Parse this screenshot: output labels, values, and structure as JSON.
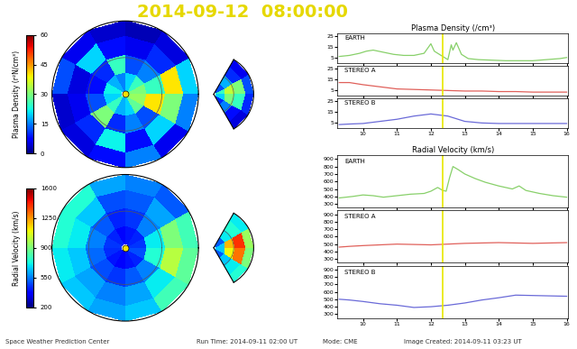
{
  "title": "2014-09-12  08:00:00",
  "footer": [
    "Space Weather Prediction Center",
    "Run Time: 2014-09-11 02:00 UT",
    "Mode: CME",
    "Image Created: 2014-09-11 03:23 UT"
  ],
  "chart_data": [
    {
      "type": "polar_heatmap",
      "colorbar_label": "Plasma Density (r²N/cm³)",
      "colorbar_range": [
        0,
        60
      ],
      "colorbar_ticks": [
        0,
        15,
        30,
        45,
        60
      ],
      "tick_labels": false,
      "grid": false,
      "theta_edges": [
        0,
        30,
        60,
        90,
        120,
        150,
        180,
        210,
        240,
        270,
        300,
        330,
        360
      ],
      "r_edges": [
        0.1,
        0.6,
        1.1,
        1.6,
        2.0
      ],
      "cells": [
        [
          30,
          25,
          40,
          20
        ],
        [
          25,
          15,
          10,
          5
        ],
        [
          20,
          12,
          6,
          3
        ],
        [
          15,
          25,
          8,
          4
        ],
        [
          18,
          10,
          20,
          6
        ],
        [
          22,
          8,
          5,
          12
        ],
        [
          20,
          12,
          6,
          4
        ],
        [
          25,
          30,
          10,
          5
        ],
        [
          18,
          10,
          22,
          8
        ],
        [
          20,
          15,
          8,
          15
        ],
        [
          28,
          12,
          20,
          6
        ],
        [
          32,
          40,
          30,
          15
        ]
      ],
      "wedge": {
        "theta_edges": [
          -60,
          -30,
          0,
          30,
          60
        ],
        "r_edges": [
          0.1,
          0.6,
          1.1,
          1.6,
          2.0
        ],
        "cells": [
          [
            10,
            15,
            8,
            5
          ],
          [
            20,
            30,
            25,
            10
          ],
          [
            25,
            35,
            30,
            12
          ],
          [
            12,
            18,
            10,
            6
          ]
        ]
      }
    },
    {
      "type": "polar_heatmap",
      "colorbar_label": "Radial Velocity (km/s)",
      "colorbar_range": [
        200,
        1600
      ],
      "colorbar_ticks": [
        200,
        550,
        900,
        1250,
        1600
      ],
      "tick_labels": false,
      "grid": false,
      "theta_edges": [
        0,
        30,
        60,
        90,
        120,
        150,
        180,
        210,
        240,
        270,
        300,
        330,
        360
      ],
      "r_edges": [
        0.1,
        0.6,
        1.1,
        1.6,
        2.0
      ],
      "cells": [
        [
          450,
          700,
          900,
          800
        ],
        [
          420,
          550,
          600,
          500
        ],
        [
          400,
          450,
          500,
          550
        ],
        [
          380,
          420,
          480,
          600
        ],
        [
          420,
          500,
          650,
          750
        ],
        [
          450,
          550,
          700,
          750
        ],
        [
          430,
          520,
          650,
          700
        ],
        [
          400,
          480,
          600,
          650
        ],
        [
          380,
          450,
          550,
          600
        ],
        [
          400,
          500,
          600,
          650
        ],
        [
          420,
          550,
          700,
          800
        ],
        [
          480,
          750,
          1000,
          850
        ]
      ],
      "wedge": {
        "theta_edges": [
          -60,
          -30,
          0,
          30,
          60
        ],
        "r_edges": [
          0.1,
          0.6,
          1.1,
          1.6,
          2.0
        ],
        "cells": [
          [
            500,
            650,
            700,
            750
          ],
          [
            650,
            1100,
            1300,
            900
          ],
          [
            650,
            1200,
            1400,
            950
          ],
          [
            500,
            700,
            750,
            700
          ]
        ]
      }
    },
    {
      "type": "line",
      "title": "Plasma Density (/cm³)",
      "tick_labels": "y",
      "vertical_line": 12.35,
      "xlim": [
        9.25,
        16.05
      ],
      "xticks": [
        10,
        11,
        12,
        13,
        14,
        15,
        16
      ],
      "ylim": [
        0,
        28
      ],
      "yticks": [
        5,
        15,
        25
      ],
      "series": [
        {
          "name": "EARTH",
          "color": "#88d06a",
          "x": [
            9.3,
            9.6,
            9.9,
            10.1,
            10.3,
            10.6,
            10.9,
            11.2,
            11.5,
            11.8,
            12.0,
            12.1,
            12.25,
            12.4,
            12.5,
            12.6,
            12.65,
            12.75,
            12.9,
            13.1,
            13.4,
            13.8,
            14.2,
            14.6,
            15.0,
            15.4,
            15.8,
            16.0
          ],
          "values": [
            6,
            7,
            9,
            11,
            12,
            10,
            8,
            7,
            7,
            9,
            18,
            11,
            8,
            5,
            3,
            17,
            12,
            19,
            8,
            4,
            3,
            2.5,
            2,
            2,
            2,
            3,
            4,
            5
          ]
        }
      ]
    },
    {
      "type": "line",
      "tick_labels": "y",
      "vertical_line": 12.35,
      "xlim": [
        9.25,
        16.05
      ],
      "xticks": [
        10,
        11,
        12,
        13,
        14,
        15,
        16
      ],
      "ylim": [
        0,
        28
      ],
      "yticks": [
        5,
        15,
        25
      ],
      "series": [
        {
          "name": "STEREO A",
          "color": "#e0605a",
          "x": [
            9.3,
            9.6,
            10.0,
            10.5,
            11.0,
            11.5,
            12.0,
            12.5,
            13.0,
            13.5,
            14.0,
            14.5,
            15.0,
            15.5,
            16.0
          ],
          "values": [
            12,
            12,
            10,
            8,
            6,
            5.5,
            5,
            4.5,
            4,
            4,
            3.5,
            3.5,
            3,
            3,
            3
          ]
        }
      ]
    },
    {
      "type": "line",
      "vertical_line": 12.35,
      "xlim": [
        9.25,
        16.05
      ],
      "xticks": [
        10,
        11,
        12,
        13,
        14,
        15,
        16
      ],
      "ylim": [
        0,
        28
      ],
      "yticks": [
        5,
        15,
        25
      ],
      "series": [
        {
          "name": "STEREO B",
          "color": "#6a6ad8",
          "x": [
            9.3,
            9.6,
            10.0,
            10.5,
            11.0,
            11.5,
            12.0,
            12.5,
            13.0,
            13.5,
            14.0,
            14.5,
            15.0,
            15.5,
            16.0
          ],
          "values": [
            3,
            3.5,
            4,
            6,
            8,
            11,
            13,
            11,
            6,
            4.5,
            4,
            4,
            4,
            4,
            4
          ]
        }
      ]
    },
    {
      "type": "line",
      "title": "Radial Velocity (km/s)",
      "tick_labels": "y",
      "vertical_line": 12.35,
      "xlim": [
        9.25,
        16.05
      ],
      "xticks": [
        10,
        11,
        12,
        13,
        14,
        15,
        16
      ],
      "ylim": [
        250,
        950
      ],
      "yticks": [
        300,
        400,
        500,
        600,
        700,
        800,
        900
      ],
      "series": [
        {
          "name": "EARTH",
          "color": "#88d06a",
          "x": [
            9.3,
            9.7,
            10.0,
            10.3,
            10.6,
            11.0,
            11.4,
            11.8,
            12.0,
            12.2,
            12.35,
            12.45,
            12.55,
            12.65,
            12.8,
            13.0,
            13.3,
            13.6,
            14.0,
            14.4,
            14.6,
            14.8,
            15.2,
            15.6,
            16.0
          ],
          "values": [
            380,
            400,
            420,
            410,
            390,
            410,
            430,
            440,
            470,
            520,
            480,
            470,
            650,
            800,
            760,
            700,
            640,
            590,
            540,
            500,
            540,
            480,
            440,
            410,
            390
          ]
        }
      ]
    },
    {
      "type": "line",
      "tick_labels": "y",
      "vertical_line": 12.35,
      "xlim": [
        9.25,
        16.05
      ],
      "xticks": [
        10,
        11,
        12,
        13,
        14,
        15,
        16
      ],
      "ylim": [
        250,
        950
      ],
      "yticks": [
        300,
        400,
        500,
        600,
        700,
        800,
        900
      ],
      "series": [
        {
          "name": "STEREO A",
          "color": "#e0605a",
          "x": [
            9.3,
            9.6,
            10.0,
            10.5,
            11.0,
            11.5,
            12.0,
            12.5,
            13.0,
            13.5,
            14.0,
            14.5,
            15.0,
            15.5,
            16.0
          ],
          "values": [
            460,
            470,
            480,
            490,
            500,
            495,
            490,
            500,
            510,
            515,
            520,
            515,
            510,
            515,
            520
          ]
        }
      ]
    },
    {
      "type": "line",
      "vertical_line": 12.35,
      "xlim": [
        9.25,
        16.05
      ],
      "xticks": [
        10,
        11,
        12,
        13,
        14,
        15,
        16
      ],
      "ylim": [
        250,
        950
      ],
      "yticks": [
        300,
        400,
        500,
        600,
        700,
        800,
        900
      ],
      "series": [
        {
          "name": "STEREO B",
          "color": "#6a6ad8",
          "x": [
            9.3,
            9.6,
            10.0,
            10.5,
            11.0,
            11.5,
            12.0,
            12.5,
            13.0,
            13.5,
            14.0,
            14.5,
            15.0,
            15.5,
            16.0
          ],
          "values": [
            500,
            490,
            470,
            440,
            420,
            390,
            400,
            420,
            450,
            490,
            520,
            555,
            550,
            545,
            540
          ]
        }
      ]
    }
  ]
}
